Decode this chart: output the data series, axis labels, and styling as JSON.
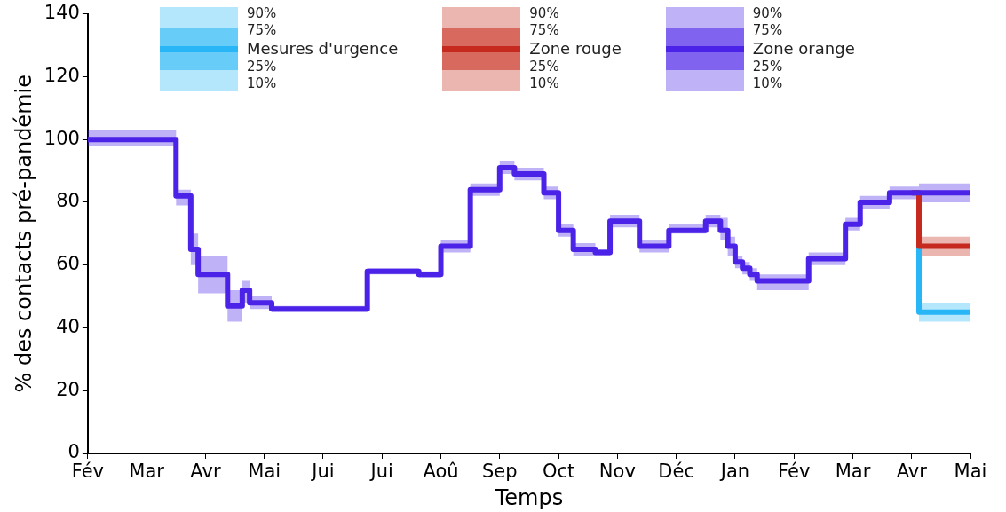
{
  "chart_data": {
    "type": "step",
    "xlabel": "Temps",
    "ylabel": "% des contacts pré-pandémie",
    "ylim": [
      0,
      140
    ],
    "yticks": [
      0,
      20,
      40,
      60,
      80,
      100,
      120,
      140
    ],
    "grid": false,
    "legend": "top",
    "annotations": [
      "90%",
      "75%",
      "25%",
      "10%"
    ],
    "categories": [
      "Fév",
      null,
      null,
      null,
      null,
      null,
      null,
      null,
      "Mar",
      null,
      null,
      null,
      null,
      null,
      null,
      null,
      "Avr",
      null,
      null,
      null,
      null,
      null,
      null,
      null,
      "Mai",
      null,
      null,
      null,
      null,
      null,
      null,
      null,
      "Jui",
      null,
      null,
      null,
      null,
      null,
      null,
      null,
      "Jui",
      null,
      null,
      null,
      null,
      null,
      null,
      null,
      "Aoû",
      null,
      null,
      null,
      null,
      null,
      null,
      null,
      "Sep",
      null,
      null,
      null,
      null,
      null,
      null,
      null,
      "Oct",
      null,
      null,
      null,
      null,
      null,
      null,
      null,
      "Nov",
      null,
      null,
      null,
      null,
      null,
      null,
      null,
      "Déc",
      null,
      null,
      null,
      null,
      null,
      null,
      null,
      "Jan",
      null,
      null,
      null,
      null,
      null,
      null,
      null,
      "Fév",
      null,
      null,
      null,
      null,
      null,
      null,
      null,
      "Mar",
      null,
      null,
      null,
      null,
      null,
      null,
      null,
      "Avr",
      null,
      null,
      null,
      null,
      null,
      null,
      null,
      "Mai"
    ],
    "series": [
      {
        "name": "Mesures d'urgence",
        "color": "#29b6f6",
        "values": [
          null,
          null,
          null,
          null,
          null,
          null,
          null,
          null,
          null,
          null,
          null,
          null,
          null,
          null,
          null,
          null,
          null,
          null,
          null,
          null,
          null,
          null,
          null,
          null,
          null,
          null,
          null,
          null,
          null,
          null,
          null,
          null,
          null,
          null,
          null,
          null,
          null,
          null,
          null,
          null,
          null,
          null,
          null,
          null,
          null,
          null,
          null,
          null,
          null,
          null,
          null,
          null,
          null,
          null,
          null,
          null,
          null,
          null,
          null,
          null,
          null,
          null,
          null,
          null,
          null,
          null,
          null,
          null,
          null,
          null,
          null,
          null,
          null,
          null,
          null,
          null,
          null,
          null,
          null,
          null,
          null,
          null,
          null,
          null,
          null,
          null,
          null,
          null,
          null,
          null,
          null,
          null,
          null,
          null,
          null,
          null,
          null,
          null,
          null,
          null,
          null,
          null,
          null,
          null,
          null,
          null,
          null,
          null,
          null,
          null,
          null,
          null,
          83,
          45,
          45,
          45,
          45,
          45,
          45,
          45,
          45
        ],
        "lower": [
          null,
          null,
          null,
          null,
          null,
          null,
          null,
          null,
          null,
          null,
          null,
          null,
          null,
          null,
          null,
          null,
          null,
          null,
          null,
          null,
          null,
          null,
          null,
          null,
          null,
          null,
          null,
          null,
          null,
          null,
          null,
          null,
          null,
          null,
          null,
          null,
          null,
          null,
          null,
          null,
          null,
          null,
          null,
          null,
          null,
          null,
          null,
          null,
          null,
          null,
          null,
          null,
          null,
          null,
          null,
          null,
          null,
          null,
          null,
          null,
          null,
          null,
          null,
          null,
          null,
          null,
          null,
          null,
          null,
          null,
          null,
          null,
          null,
          null,
          null,
          null,
          null,
          null,
          null,
          null,
          null,
          null,
          null,
          null,
          null,
          null,
          null,
          null,
          null,
          null,
          null,
          null,
          null,
          null,
          null,
          null,
          null,
          null,
          null,
          null,
          null,
          null,
          null,
          null,
          null,
          null,
          null,
          null,
          null,
          null,
          null,
          null,
          null,
          42,
          42,
          42,
          42,
          42,
          42,
          42,
          42
        ],
        "upper": [
          null,
          null,
          null,
          null,
          null,
          null,
          null,
          null,
          null,
          null,
          null,
          null,
          null,
          null,
          null,
          null,
          null,
          null,
          null,
          null,
          null,
          null,
          null,
          null,
          null,
          null,
          null,
          null,
          null,
          null,
          null,
          null,
          null,
          null,
          null,
          null,
          null,
          null,
          null,
          null,
          null,
          null,
          null,
          null,
          null,
          null,
          null,
          null,
          null,
          null,
          null,
          null,
          null,
          null,
          null,
          null,
          null,
          null,
          null,
          null,
          null,
          null,
          null,
          null,
          null,
          null,
          null,
          null,
          null,
          null,
          null,
          null,
          null,
          null,
          null,
          null,
          null,
          null,
          null,
          null,
          null,
          null,
          null,
          null,
          null,
          null,
          null,
          null,
          null,
          null,
          null,
          null,
          null,
          null,
          null,
          null,
          null,
          null,
          null,
          null,
          null,
          null,
          null,
          null,
          null,
          null,
          null,
          null,
          null,
          null,
          null,
          null,
          null,
          48,
          48,
          48,
          48,
          48,
          48,
          48,
          48
        ]
      },
      {
        "name": "Zone rouge",
        "color": "#c62a1e",
        "values": [
          null,
          null,
          null,
          null,
          null,
          null,
          null,
          null,
          null,
          null,
          null,
          null,
          null,
          null,
          null,
          null,
          null,
          null,
          null,
          null,
          null,
          null,
          null,
          null,
          null,
          null,
          null,
          null,
          null,
          null,
          null,
          null,
          null,
          null,
          null,
          null,
          null,
          null,
          null,
          null,
          null,
          null,
          null,
          null,
          null,
          null,
          null,
          null,
          null,
          null,
          null,
          null,
          null,
          null,
          null,
          null,
          null,
          null,
          null,
          null,
          null,
          null,
          null,
          null,
          null,
          null,
          null,
          null,
          null,
          null,
          null,
          null,
          null,
          null,
          null,
          null,
          null,
          null,
          null,
          null,
          null,
          null,
          null,
          null,
          null,
          null,
          null,
          null,
          null,
          null,
          null,
          null,
          null,
          null,
          null,
          null,
          null,
          null,
          null,
          null,
          null,
          null,
          null,
          null,
          null,
          null,
          null,
          null,
          null,
          null,
          null,
          null,
          83,
          66,
          66,
          66,
          66,
          66,
          66,
          66,
          66
        ],
        "lower": [
          null,
          null,
          null,
          null,
          null,
          null,
          null,
          null,
          null,
          null,
          null,
          null,
          null,
          null,
          null,
          null,
          null,
          null,
          null,
          null,
          null,
          null,
          null,
          null,
          null,
          null,
          null,
          null,
          null,
          null,
          null,
          null,
          null,
          null,
          null,
          null,
          null,
          null,
          null,
          null,
          null,
          null,
          null,
          null,
          null,
          null,
          null,
          null,
          null,
          null,
          null,
          null,
          null,
          null,
          null,
          null,
          null,
          null,
          null,
          null,
          null,
          null,
          null,
          null,
          null,
          null,
          null,
          null,
          null,
          null,
          null,
          null,
          null,
          null,
          null,
          null,
          null,
          null,
          null,
          null,
          null,
          null,
          null,
          null,
          null,
          null,
          null,
          null,
          null,
          null,
          null,
          null,
          null,
          null,
          null,
          null,
          null,
          null,
          null,
          null,
          null,
          null,
          null,
          null,
          null,
          null,
          null,
          null,
          null,
          null,
          null,
          null,
          null,
          63,
          63,
          63,
          63,
          63,
          63,
          63,
          63
        ],
        "upper": [
          null,
          null,
          null,
          null,
          null,
          null,
          null,
          null,
          null,
          null,
          null,
          null,
          null,
          null,
          null,
          null,
          null,
          null,
          null,
          null,
          null,
          null,
          null,
          null,
          null,
          null,
          null,
          null,
          null,
          null,
          null,
          null,
          null,
          null,
          null,
          null,
          null,
          null,
          null,
          null,
          null,
          null,
          null,
          null,
          null,
          null,
          null,
          null,
          null,
          null,
          null,
          null,
          null,
          null,
          null,
          null,
          null,
          null,
          null,
          null,
          null,
          null,
          null,
          null,
          null,
          null,
          null,
          null,
          null,
          null,
          null,
          null,
          null,
          null,
          null,
          null,
          null,
          null,
          null,
          null,
          null,
          null,
          null,
          null,
          null,
          null,
          null,
          null,
          null,
          null,
          null,
          null,
          null,
          null,
          null,
          null,
          null,
          null,
          null,
          null,
          null,
          null,
          null,
          null,
          null,
          null,
          null,
          null,
          null,
          null,
          null,
          null,
          null,
          69,
          69,
          69,
          69,
          69,
          69,
          69,
          69
        ]
      },
      {
        "name": "Zone orange",
        "color": "#4a22e8",
        "values": [
          100,
          100,
          100,
          100,
          100,
          100,
          100,
          100,
          100,
          100,
          100,
          100,
          82,
          82,
          65,
          57,
          57,
          57,
          57,
          47,
          47,
          52,
          48,
          48,
          48,
          46,
          46,
          46,
          46,
          46,
          46,
          46,
          46,
          46,
          46,
          46,
          46,
          46,
          58,
          58,
          58,
          58,
          58,
          58,
          58,
          57,
          57,
          57,
          66,
          66,
          66,
          66,
          84,
          84,
          84,
          84,
          91,
          91,
          89,
          89,
          89,
          89,
          83,
          83,
          71,
          71,
          65,
          65,
          65,
          64,
          64,
          74,
          74,
          74,
          74,
          66,
          66,
          66,
          66,
          71,
          71,
          71,
          71,
          71,
          74,
          74,
          71,
          66,
          61,
          59,
          57,
          55,
          55,
          55,
          55,
          55,
          55,
          55,
          62,
          62,
          62,
          62,
          62,
          73,
          73,
          80,
          80,
          80,
          80,
          83,
          83,
          83,
          83,
          83,
          83,
          83,
          83,
          83,
          83,
          83,
          83
        ],
        "lower": [
          98,
          98,
          98,
          98,
          98,
          98,
          98,
          98,
          98,
          98,
          98,
          98,
          79,
          79,
          60,
          51,
          51,
          51,
          51,
          42,
          42,
          48,
          46,
          46,
          46,
          45,
          45,
          45,
          45,
          45,
          45,
          45,
          45,
          45,
          45,
          45,
          45,
          45,
          57,
          57,
          57,
          57,
          57,
          57,
          57,
          56,
          56,
          56,
          64,
          64,
          64,
          64,
          82,
          82,
          82,
          82,
          89,
          89,
          87,
          87,
          87,
          87,
          81,
          81,
          69,
          69,
          63,
          63,
          63,
          63,
          63,
          72,
          72,
          72,
          72,
          64,
          64,
          64,
          64,
          70,
          70,
          70,
          70,
          70,
          72,
          72,
          68,
          63,
          59,
          57,
          55,
          52,
          52,
          52,
          52,
          52,
          52,
          52,
          60,
          60,
          60,
          60,
          60,
          71,
          71,
          78,
          78,
          78,
          78,
          81,
          81,
          81,
          81,
          80,
          80,
          80,
          80,
          80,
          80,
          80,
          80
        ],
        "upper": [
          103,
          103,
          103,
          103,
          103,
          103,
          103,
          103,
          103,
          103,
          103,
          103,
          84,
          84,
          70,
          63,
          63,
          63,
          63,
          52,
          52,
          55,
          50,
          50,
          50,
          47,
          47,
          47,
          47,
          47,
          47,
          47,
          47,
          47,
          47,
          47,
          47,
          47,
          59,
          59,
          59,
          59,
          59,
          59,
          59,
          58,
          58,
          58,
          68,
          68,
          68,
          68,
          86,
          86,
          86,
          86,
          93,
          93,
          91,
          91,
          91,
          91,
          85,
          85,
          73,
          73,
          67,
          67,
          67,
          65,
          65,
          76,
          76,
          76,
          76,
          68,
          68,
          68,
          68,
          73,
          73,
          73,
          73,
          73,
          76,
          76,
          75,
          69,
          63,
          61,
          59,
          57,
          57,
          57,
          57,
          57,
          57,
          57,
          64,
          64,
          64,
          64,
          64,
          75,
          75,
          82,
          82,
          82,
          82,
          85,
          85,
          85,
          85,
          86,
          86,
          86,
          86,
          86,
          86,
          86,
          86
        ]
      }
    ]
  }
}
